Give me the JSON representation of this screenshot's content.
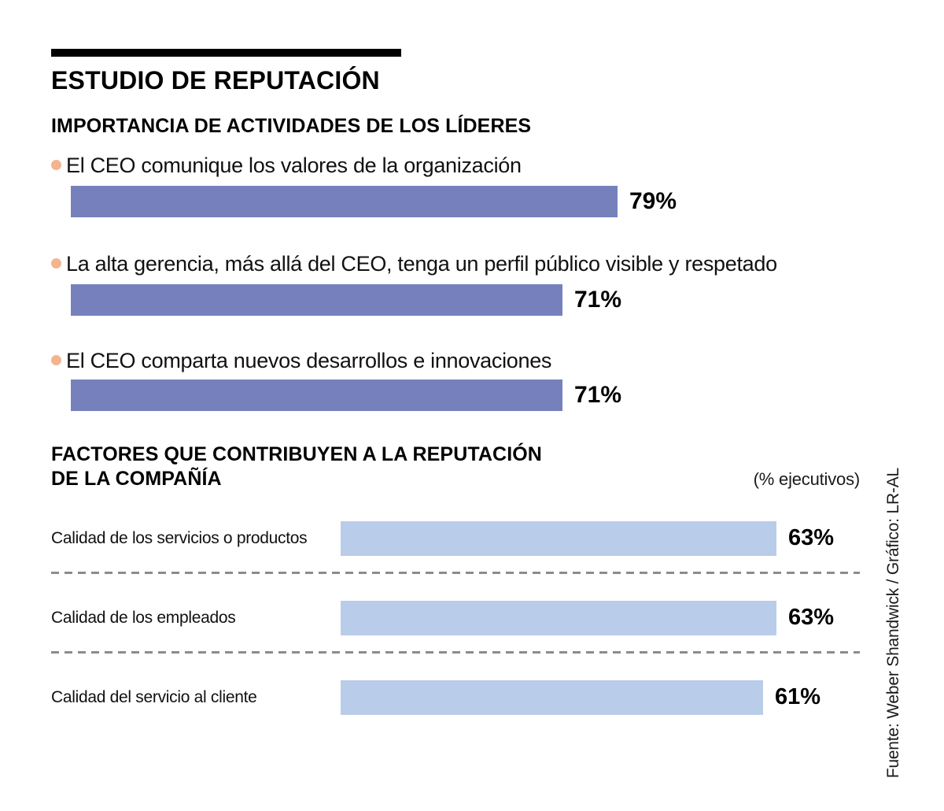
{
  "page": {
    "title": "ESTUDIO DE REPUTACIÓN",
    "source_note": "Fuente: Weber Shandwick / Gráfico: LR-AL"
  },
  "colors": {
    "bar_primary": "#7680bc",
    "bar_secondary": "#b9cce9",
    "bullet": "#f5b38f",
    "divider": "#8c8c8c",
    "text": "#000000"
  },
  "chart_data": [
    {
      "type": "bar",
      "orientation": "horizontal",
      "title": "IMPORTANCIA DE ACTIVIDADES DE LOS LÍDERES",
      "unit": "%",
      "xlim": [
        0,
        100
      ],
      "bar_color": "#7680bc",
      "categories": [
        "El CEO comunique los valores de la organización",
        "La alta gerencia, más allá del CEO, tenga un perfil público visible y respetado",
        "El CEO comparta nuevos desarrollos e innovaciones"
      ],
      "values": [
        79,
        71,
        71
      ],
      "value_labels": [
        "79%",
        "71%",
        "71%"
      ]
    },
    {
      "type": "bar",
      "orientation": "horizontal",
      "title": "FACTORES QUE CONTRIBUYEN  A LA REPUTACIÓN DE LA COMPAÑÍA",
      "title_lines": [
        "FACTORES QUE CONTRIBUYEN  A LA REPUTACIÓN",
        "DE LA COMPAÑÍA"
      ],
      "subtitle": "(% ejecutivos)",
      "unit": "%",
      "xlim": [
        0,
        100
      ],
      "bar_color": "#b9cce9",
      "categories": [
        "Calidad de los servicios o productos",
        "Calidad de los empleados",
        "Calidad del servicio al cliente"
      ],
      "values": [
        63,
        63,
        61
      ],
      "value_labels": [
        "63%",
        "63%",
        "61%"
      ]
    }
  ]
}
